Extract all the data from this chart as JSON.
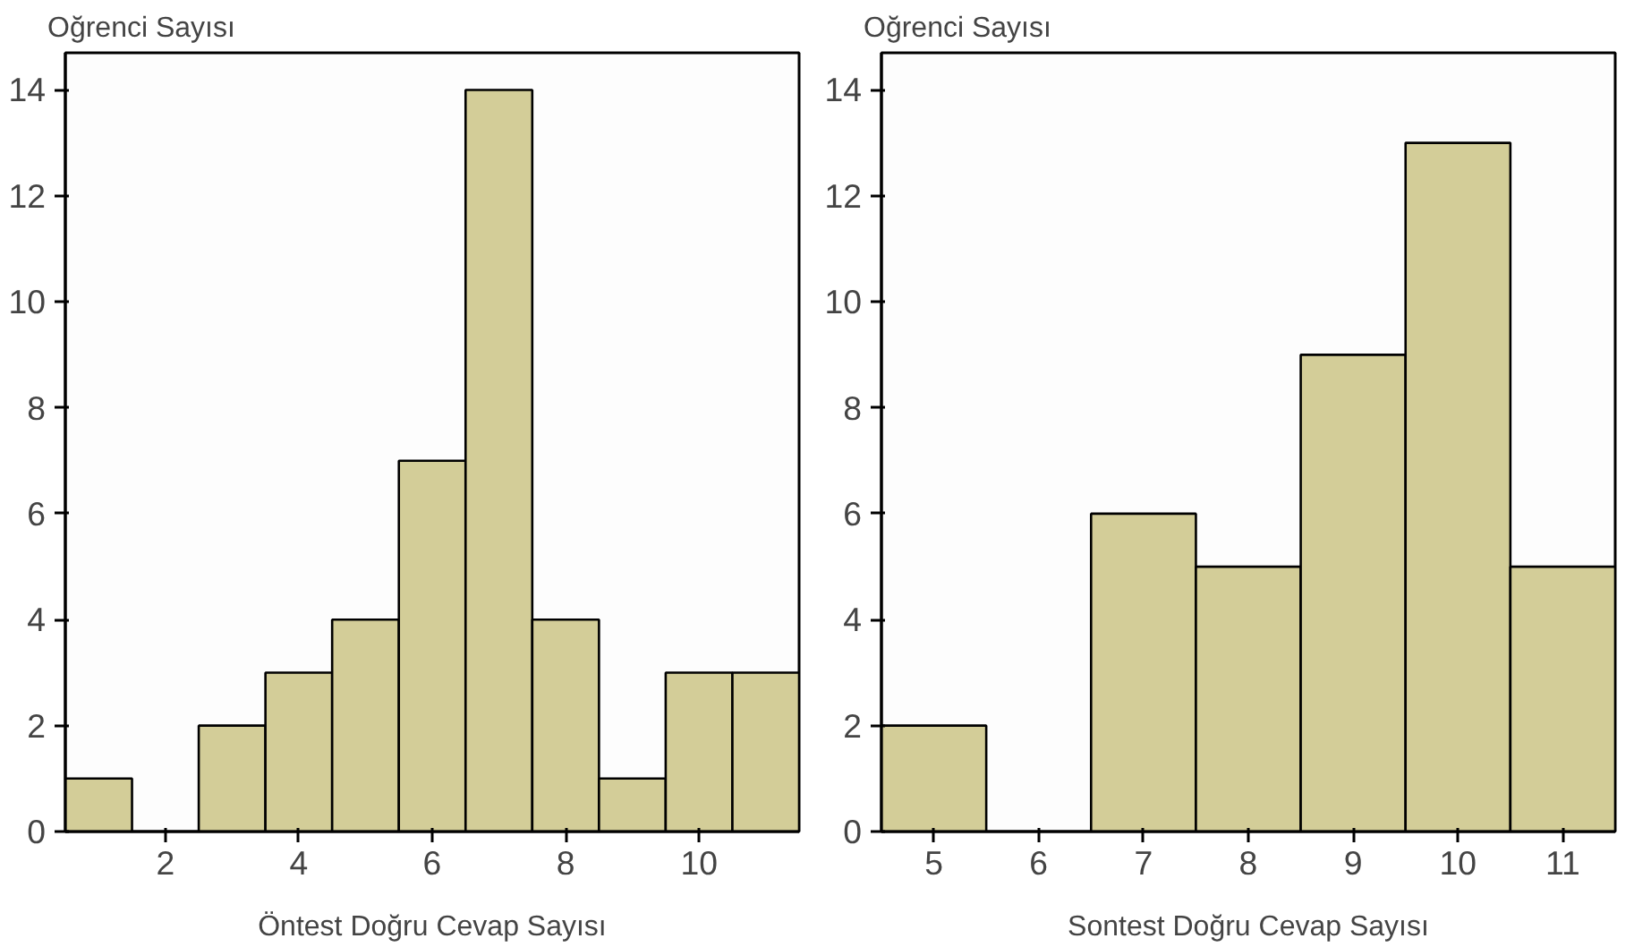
{
  "chart_data": [
    {
      "type": "histogram",
      "ylabel": "Oğrenci  Sayısı",
      "xlabel": "Öntest Doğru Cevap Sayısı",
      "bins": [
        0.5,
        1.5,
        2.5,
        3.5,
        4.5,
        5.5,
        6.5,
        7.5,
        8.5,
        9.5,
        10.5,
        11.5
      ],
      "values": [
        1,
        0,
        2,
        3,
        4,
        7,
        14,
        4,
        1,
        3,
        3
      ],
      "color": "#d3cd98",
      "xlim": [
        0.5,
        11.5
      ],
      "xticks": [
        2,
        4,
        6,
        8,
        10
      ],
      "ylim": [
        0,
        14.7
      ],
      "yticks": [
        0,
        2,
        4,
        6,
        8,
        10,
        12,
        14
      ],
      "grid": false
    },
    {
      "type": "histogram",
      "ylabel": "Oğrenci  Sayısı",
      "xlabel": "Sontest Doğru Cevap Sayısı",
      "bins": [
        4.5,
        5.5,
        6.5,
        7.5,
        8.5,
        9.5,
        10.5,
        11.5
      ],
      "values": [
        2,
        0,
        6,
        5,
        9,
        13,
        5
      ],
      "color": "#d3cd98",
      "xlim": [
        4.5,
        11.5
      ],
      "xticks": [
        5,
        6,
        7,
        8,
        9,
        10,
        11
      ],
      "ylim": [
        0,
        14.7
      ],
      "yticks": [
        0,
        2,
        4,
        6,
        8,
        10,
        12,
        14
      ],
      "grid": false
    }
  ]
}
